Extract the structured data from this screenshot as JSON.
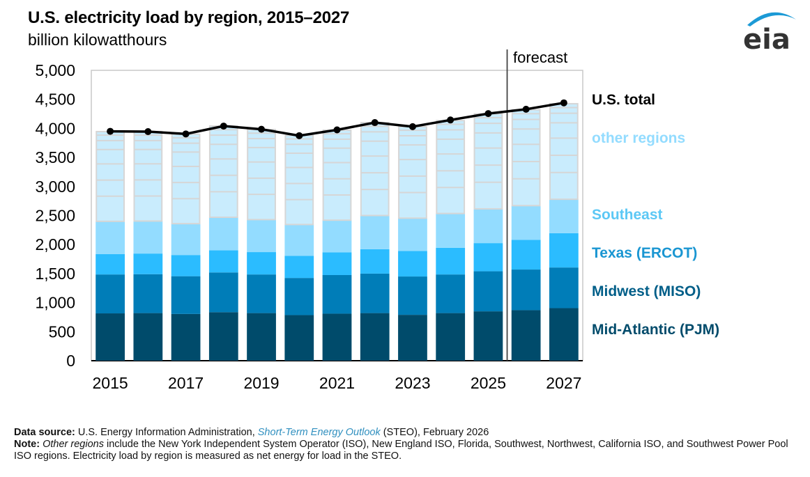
{
  "header": {
    "title": "U.S. electricity load by region, 2015–2027",
    "subtitle": "billion kilowatthours",
    "logo_text": "eia",
    "forecast_label": "forecast"
  },
  "colors": {
    "pjm": "#004b6b",
    "miso": "#007db8",
    "ercot": "#2bbcff",
    "southeast": "#93dcff",
    "other": "#c9ecfd",
    "other_divider": "#d6d6d6",
    "total_line": "#000000",
    "logo_arc": "#1c9ad6",
    "logo_text": "#333333"
  },
  "chart_data": {
    "type": "bar",
    "stacked": true,
    "title": "U.S. electricity load by region, 2015–2027",
    "ylabel": "billion kilowatthours",
    "xlabel": "",
    "ylim": [
      0,
      5000
    ],
    "yticks": [
      0,
      500,
      1000,
      1500,
      2000,
      2500,
      3000,
      3500,
      4000,
      4500,
      5000
    ],
    "ytick_labels": [
      "0",
      "500",
      "1,000",
      "1,500",
      "2,000",
      "2,500",
      "3,000",
      "3,500",
      "4,000",
      "4,500",
      "5,000"
    ],
    "categories": [
      "2015",
      "2016",
      "2017",
      "2018",
      "2019",
      "2020",
      "2021",
      "2022",
      "2023",
      "2024",
      "2025",
      "2026",
      "2027"
    ],
    "xtick_labels": [
      "2015",
      "2017",
      "2019",
      "2021",
      "2023",
      "2025",
      "2027"
    ],
    "forecast_start": "2026",
    "series": [
      {
        "name": "Mid-Atlantic (PJM)",
        "key": "pjm",
        "values": [
          815,
          820,
          805,
          835,
          820,
          785,
          810,
          820,
          790,
          820,
          850,
          870,
          905
        ]
      },
      {
        "name": "Midwest (MISO)",
        "key": "miso",
        "values": [
          670,
          670,
          650,
          685,
          665,
          640,
          665,
          680,
          660,
          665,
          690,
          700,
          700
        ]
      },
      {
        "name": "Texas (ERCOT)",
        "key": "ercot",
        "values": [
          350,
          355,
          365,
          380,
          385,
          380,
          390,
          420,
          440,
          460,
          485,
          510,
          590
        ]
      },
      {
        "name": "Southeast",
        "key": "southeast",
        "values": [
          565,
          560,
          540,
          570,
          560,
          540,
          555,
          580,
          565,
          590,
          590,
          590,
          585
        ]
      },
      {
        "name": "other regions",
        "key": "other",
        "values": [
          1545,
          1540,
          1540,
          1570,
          1550,
          1535,
          1550,
          1600,
          1575,
          1600,
          1635,
          1650,
          1645
        ],
        "subregion_shares": [
          0.04,
          0.06,
          0.1,
          0.16,
          0.18,
          0.18,
          0.28
        ]
      }
    ],
    "line": {
      "name": "U.S. total",
      "values": [
        3950,
        3945,
        3905,
        4040,
        3985,
        3875,
        3975,
        4100,
        4030,
        4145,
        4255,
        4330,
        4440
      ]
    },
    "legend": {
      "placement": "right",
      "entries": [
        "U.S. total",
        "other regions",
        "Southeast",
        "Texas (ERCOT)",
        "Midwest (MISO)",
        "Mid-Atlantic (PJM)"
      ]
    },
    "grid": false
  },
  "legend_labels": {
    "total": "U.S. total",
    "other": "other regions",
    "southeast": "Southeast",
    "ercot": "Texas (ERCOT)",
    "miso": "Midwest (MISO)",
    "pjm": "Mid-Atlantic (PJM)"
  },
  "footer": {
    "source_label": "Data source:",
    "source_text_1": " U.S. Energy Information Administration, ",
    "source_link": "Short-Term Energy Outlook",
    "source_text_2": " (STEO), February 2026",
    "note_label": "Note:",
    "note_italic": "Other regions",
    "note_text": " include the New York Independent System Operator (ISO), New England ISO, Florida, Southwest, Northwest, California ISO, and Southwest Power Pool ISO regions. Electricity load by region is measured as net energy for load in the STEO."
  }
}
